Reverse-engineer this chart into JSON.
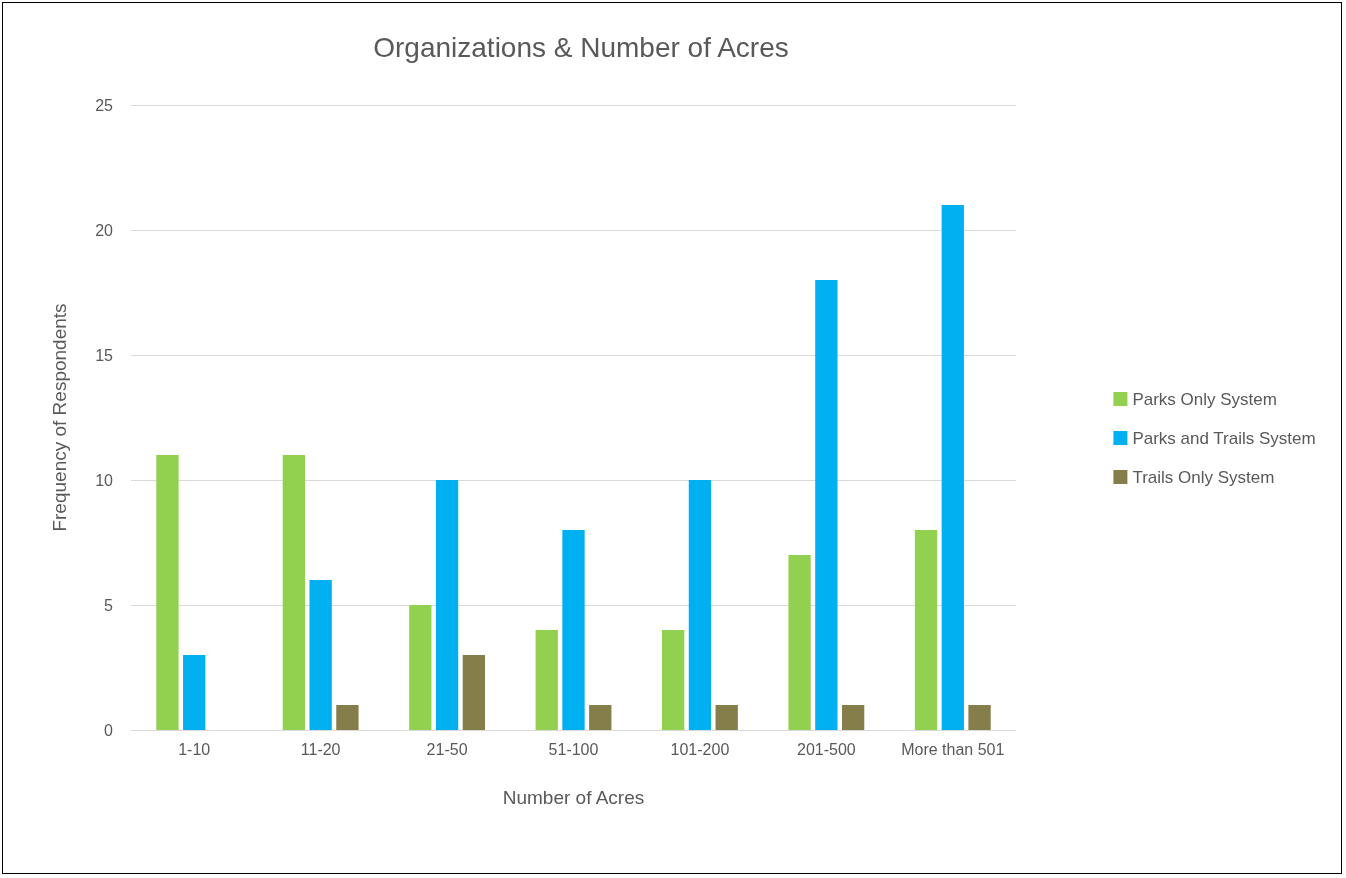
{
  "chart_data": {
    "type": "bar",
    "title": "Organizations & Number of Acres",
    "xlabel": "Number of Acres",
    "ylabel": "Frequency of Respondents",
    "categories": [
      "1-10",
      "11-20",
      "21-50",
      "51-100",
      "101-200",
      "201-500",
      "More than 501"
    ],
    "series": [
      {
        "name": "Parks Only System",
        "color": "#92d050",
        "values": [
          11,
          11,
          5,
          4,
          4,
          7,
          8
        ]
      },
      {
        "name": "Parks and Trails System",
        "color": "#00b0f0",
        "values": [
          3,
          6,
          10,
          8,
          10,
          18,
          21
        ]
      },
      {
        "name": "Trails Only System",
        "color": "#857d4a",
        "values": [
          0,
          1,
          3,
          1,
          1,
          1,
          1
        ]
      }
    ],
    "ylim": [
      0,
      25
    ],
    "yticks": [
      0,
      5,
      10,
      15,
      20,
      25
    ],
    "grid": "y",
    "legend": "right"
  }
}
